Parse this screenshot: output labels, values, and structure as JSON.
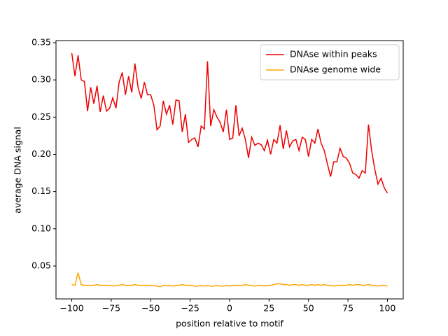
{
  "chart_data": {
    "type": "line",
    "xlabel": "position relative to motif",
    "ylabel": "average DNA signal",
    "x": [
      -100,
      -98,
      -96,
      -94,
      -92,
      -90,
      -88,
      -86,
      -84,
      -82,
      -80,
      -78,
      -76,
      -74,
      -72,
      -70,
      -68,
      -66,
      -64,
      -62,
      -60,
      -58,
      -56,
      -54,
      -52,
      -50,
      -48,
      -46,
      -44,
      -42,
      -40,
      -38,
      -36,
      -34,
      -32,
      -30,
      -28,
      -26,
      -24,
      -22,
      -20,
      -18,
      -16,
      -14,
      -12,
      -10,
      -8,
      -6,
      -4,
      -2,
      0,
      2,
      4,
      6,
      8,
      10,
      12,
      14,
      16,
      18,
      20,
      22,
      24,
      26,
      28,
      30,
      32,
      34,
      36,
      38,
      40,
      42,
      44,
      46,
      48,
      50,
      52,
      54,
      56,
      58,
      60,
      62,
      64,
      66,
      68,
      70,
      72,
      74,
      76,
      78,
      80,
      82,
      84,
      86,
      88,
      90,
      92,
      94,
      96,
      98,
      100
    ],
    "series": [
      {
        "name": "DNAse within peaks",
        "color": "#ee0000",
        "values": [
          0.336,
          0.305,
          0.333,
          0.3,
          0.298,
          0.258,
          0.29,
          0.268,
          0.292,
          0.257,
          0.279,
          0.258,
          0.262,
          0.276,
          0.262,
          0.297,
          0.31,
          0.28,
          0.305,
          0.283,
          0.322,
          0.29,
          0.275,
          0.297,
          0.28,
          0.28,
          0.266,
          0.233,
          0.238,
          0.272,
          0.254,
          0.266,
          0.24,
          0.273,
          0.272,
          0.23,
          0.254,
          0.216,
          0.22,
          0.222,
          0.21,
          0.238,
          0.234,
          0.325,
          0.238,
          0.26,
          0.25,
          0.243,
          0.23,
          0.26,
          0.22,
          0.222,
          0.266,
          0.225,
          0.235,
          0.22,
          0.195,
          0.223,
          0.212,
          0.215,
          0.213,
          0.205,
          0.219,
          0.2,
          0.22,
          0.215,
          0.239,
          0.207,
          0.232,
          0.21,
          0.218,
          0.22,
          0.205,
          0.223,
          0.22,
          0.197,
          0.22,
          0.215,
          0.234,
          0.215,
          0.205,
          0.187,
          0.17,
          0.19,
          0.19,
          0.208,
          0.197,
          0.195,
          0.188,
          0.175,
          0.173,
          0.168,
          0.178,
          0.175,
          0.24,
          0.205,
          0.18,
          0.16,
          0.168,
          0.155,
          0.148
        ]
      },
      {
        "name": "DNAse genome wide",
        "color": "#ffa500",
        "values": [
          0.025,
          0.024,
          0.041,
          0.025,
          0.024,
          0.024,
          0.024,
          0.024,
          0.025,
          0.024,
          0.024,
          0.024,
          0.024,
          0.023,
          0.024,
          0.024,
          0.025,
          0.024,
          0.024,
          0.024,
          0.025,
          0.024,
          0.024,
          0.024,
          0.024,
          0.024,
          0.024,
          0.023,
          0.022,
          0.024,
          0.024,
          0.024,
          0.023,
          0.024,
          0.024,
          0.025,
          0.024,
          0.024,
          0.024,
          0.023,
          0.023,
          0.024,
          0.023,
          0.024,
          0.023,
          0.023,
          0.024,
          0.023,
          0.023,
          0.024,
          0.023,
          0.024,
          0.024,
          0.024,
          0.024,
          0.025,
          0.024,
          0.024,
          0.023,
          0.024,
          0.024,
          0.023,
          0.024,
          0.024,
          0.025,
          0.026,
          0.026,
          0.025,
          0.025,
          0.024,
          0.025,
          0.025,
          0.024,
          0.025,
          0.024,
          0.024,
          0.025,
          0.024,
          0.025,
          0.024,
          0.025,
          0.024,
          0.024,
          0.023,
          0.024,
          0.024,
          0.024,
          0.024,
          0.025,
          0.024,
          0.025,
          0.025,
          0.024,
          0.024,
          0.025,
          0.024,
          0.024,
          0.023,
          0.024,
          0.024,
          0.023
        ]
      }
    ],
    "xlim": [
      -110,
      110
    ],
    "xticks": [
      {
        "value": -100,
        "label": "−100"
      },
      {
        "value": -75,
        "label": "−75"
      },
      {
        "value": -50,
        "label": "−50"
      },
      {
        "value": -25,
        "label": "−25"
      },
      0,
      25,
      50,
      75,
      100
    ],
    "ylim": [
      0.0058,
      0.3528
    ],
    "yticks": [
      0.05,
      {
        "value": 0.1,
        "label": "0.10"
      },
      0.15,
      {
        "value": 0.2,
        "label": "0.20"
      },
      0.25,
      {
        "value": 0.3,
        "label": "0.30"
      },
      0.35
    ],
    "legend": "upper right"
  }
}
